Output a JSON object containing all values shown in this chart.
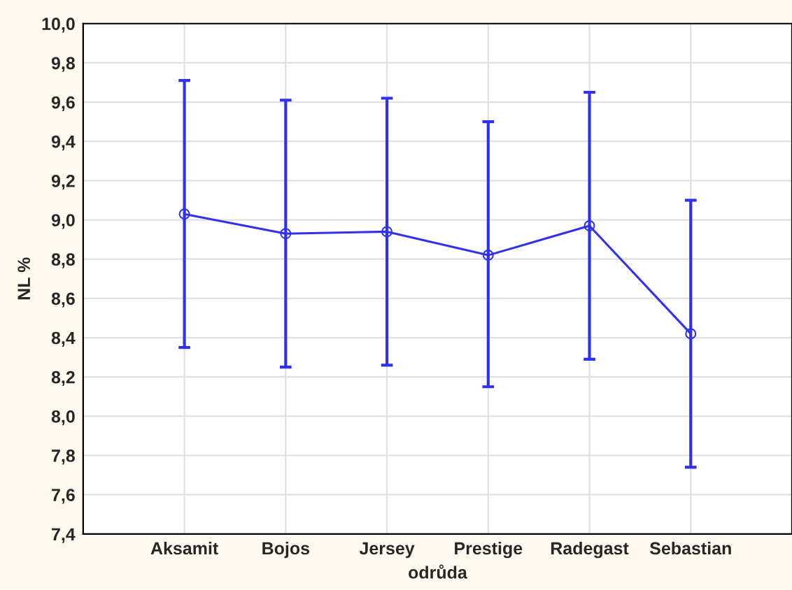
{
  "chart_data": {
    "type": "line",
    "xlabel": "odrůda",
    "ylabel": "NL %",
    "categories": [
      "Aksamit",
      "Bojos",
      "Jersey",
      "Prestige",
      "Radegast",
      "Sebastian"
    ],
    "series": [
      {
        "color": "#3030f0",
        "values": [
          9.03,
          8.93,
          8.94,
          8.82,
          8.97,
          8.42
        ],
        "errors": [
          [
            8.35,
            9.71
          ],
          [
            8.25,
            9.61
          ],
          [
            8.26,
            9.62
          ],
          [
            8.15,
            9.5
          ],
          [
            8.29,
            9.65
          ],
          [
            7.74,
            9.1
          ]
        ]
      }
    ],
    "ylim": [
      7.4,
      10.0
    ],
    "yticks": [
      {
        "value": 7.4,
        "label": "7,4"
      },
      {
        "value": 7.6,
        "label": "7,6"
      },
      {
        "value": 7.8,
        "label": "7,8"
      },
      {
        "value": 8.0,
        "label": "8,0"
      },
      {
        "value": 8.2,
        "label": "8,2"
      },
      {
        "value": 8.4,
        "label": "8,4"
      },
      {
        "value": 8.6,
        "label": "8,6"
      },
      {
        "value": 8.8,
        "label": "8,8"
      },
      {
        "value": 9.0,
        "label": "9,0"
      },
      {
        "value": 9.2,
        "label": "9,2"
      },
      {
        "value": 9.4,
        "label": "9,4"
      },
      {
        "value": 9.6,
        "label": "9,6"
      },
      {
        "value": 9.8,
        "label": "9,8"
      },
      {
        "value": 10.0,
        "label": "10,0"
      }
    ],
    "grid": true,
    "marker": "circle",
    "line_style": "solid"
  }
}
